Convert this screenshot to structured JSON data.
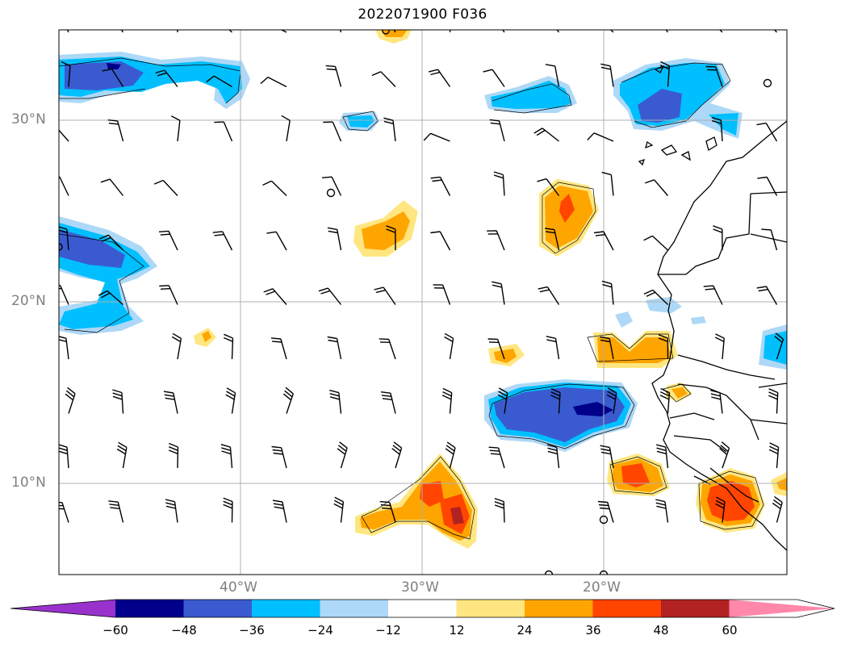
{
  "title": "2022071900 F036",
  "latitude_labels": [
    "30°N",
    "20°N",
    "10°N"
  ],
  "longitude_labels": [
    "40°W",
    "30°W",
    "20°W"
  ],
  "colorbar": {
    "tick_labels": [
      "−60",
      "−48",
      "−36",
      "−24",
      "−12",
      "12",
      "24",
      "36",
      "48",
      "60"
    ],
    "colors": [
      "#9932cc",
      "#00008b",
      "#3a5bcf",
      "#00bfff",
      "#add8f7",
      "#ffffff",
      "#ffe680",
      "#ffa500",
      "#ff4500",
      "#b22222",
      "#ff88aa"
    ]
  },
  "map": {
    "extent_lon": [
      -50,
      -10
    ],
    "extent_lat": [
      5,
      35
    ],
    "gridlines": true,
    "wind_barbs": true
  }
}
